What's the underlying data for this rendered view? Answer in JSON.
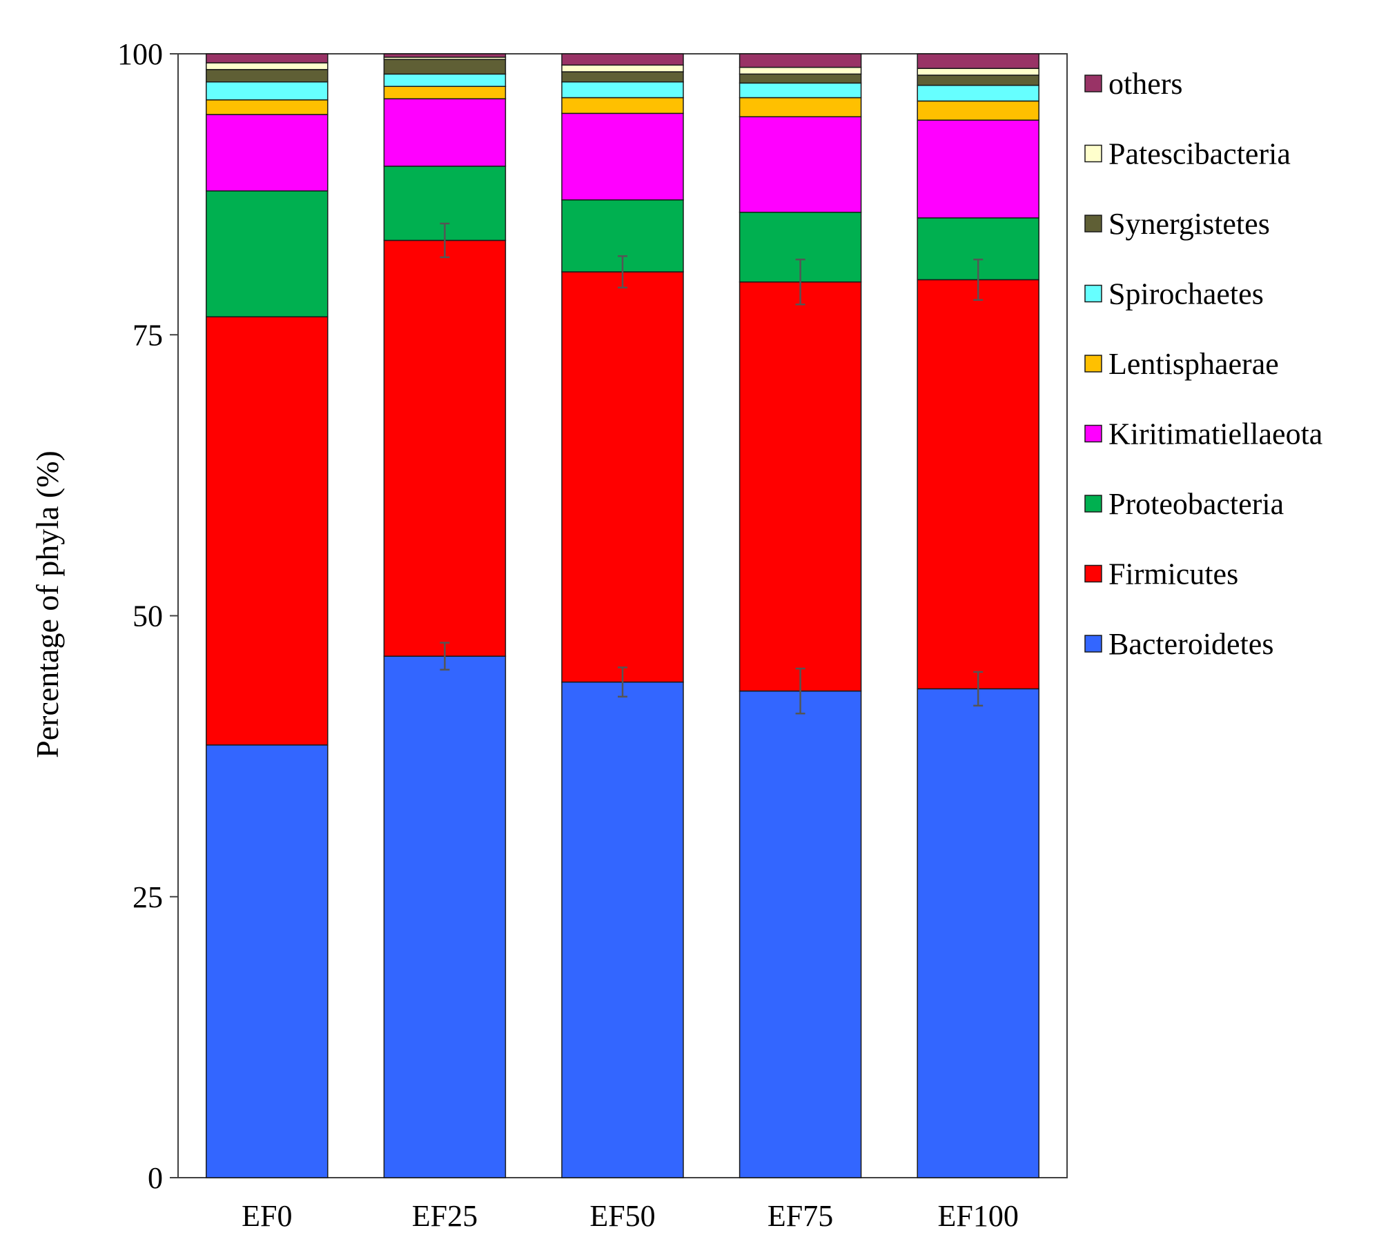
{
  "chart_data": {
    "type": "bar",
    "stacked": true,
    "title": "",
    "xlabel": "",
    "ylabel": "Percentage of phyla (%)",
    "ylim": [
      0,
      100
    ],
    "yticks": [
      0,
      25,
      50,
      75,
      100
    ],
    "grid": false,
    "legend_position": "right",
    "categories": [
      "EF0",
      "EF25",
      "EF50",
      "EF75",
      "EF100"
    ],
    "series": [
      {
        "name": "Bacteroidetes",
        "color": "#3366ff",
        "values": [
          38.5,
          46.4,
          44.1,
          43.3,
          43.5
        ],
        "errors": [
          0.0,
          1.2,
          1.3,
          2.0,
          1.5
        ]
      },
      {
        "name": "Firmicutes",
        "color": "#ff0000",
        "values": [
          38.1,
          37.0,
          36.5,
          36.4,
          36.4
        ],
        "errors": [
          0.0,
          1.5,
          1.4,
          2.0,
          1.8
        ]
      },
      {
        "name": "Proteobacteria",
        "color": "#00b050",
        "values": [
          11.2,
          6.6,
          6.4,
          6.2,
          5.5
        ],
        "errors": [
          0.0,
          0.0,
          0.0,
          0.0,
          0.0
        ]
      },
      {
        "name": "Kiritimatiellaeota",
        "color": "#ff00ff",
        "values": [
          6.8,
          6.0,
          7.7,
          8.5,
          8.7
        ],
        "errors": [
          0.0,
          0.0,
          0.0,
          0.0,
          0.0
        ]
      },
      {
        "name": "Lentisphaerae",
        "color": "#ffc000",
        "values": [
          1.3,
          1.1,
          1.4,
          1.7,
          1.7
        ],
        "errors": [
          0.0,
          0.0,
          0.0,
          0.0,
          0.0
        ]
      },
      {
        "name": "Spirochaetes",
        "color": "#66ffff",
        "values": [
          1.6,
          1.1,
          1.4,
          1.3,
          1.4
        ],
        "errors": [
          0.0,
          0.0,
          0.0,
          0.0,
          0.0
        ]
      },
      {
        "name": "Synergistetes",
        "color": "#5f5f35",
        "values": [
          1.1,
          1.3,
          0.9,
          0.8,
          0.9
        ],
        "errors": [
          0.0,
          0.0,
          0.0,
          0.0,
          0.0
        ]
      },
      {
        "name": "Patescibacteria",
        "color": "#ffffcc",
        "values": [
          0.6,
          0.2,
          0.6,
          0.6,
          0.6
        ],
        "errors": [
          0.0,
          0.0,
          0.0,
          0.0,
          0.0
        ]
      },
      {
        "name": "others",
        "color": "#993366",
        "values": [
          0.8,
          0.3,
          1.0,
          1.2,
          1.3
        ],
        "errors": [
          0.0,
          0.0,
          0.0,
          0.0,
          0.0
        ]
      }
    ],
    "legend_order": [
      "others",
      "Patescibacteria",
      "Synergistetes",
      "Spirochaetes",
      "Lentisphaerae",
      "Kiritimatiellaeota",
      "Proteobacteria",
      "Firmicutes",
      "Bacteroidetes"
    ]
  }
}
